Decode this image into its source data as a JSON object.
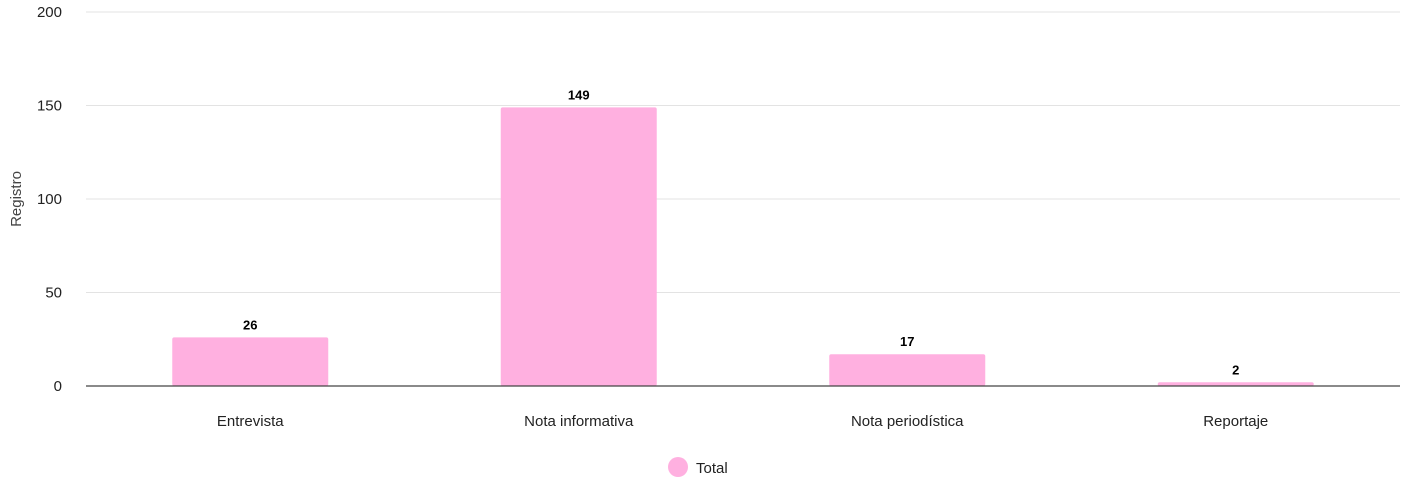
{
  "chart_data": {
    "type": "bar",
    "categories": [
      "Entrevista",
      "Nota informativa",
      "Nota periodística",
      "Reportaje"
    ],
    "series": [
      {
        "name": "Total",
        "values": [
          26,
          149,
          17,
          2
        ],
        "color": "#ffb0e0"
      }
    ],
    "xlabel": "",
    "ylabel": "Registro",
    "ylim": [
      0,
      200
    ],
    "yticks": [
      0,
      50,
      100,
      150,
      200
    ],
    "grid": true,
    "legend": "bottom-center",
    "data_labels": true
  }
}
